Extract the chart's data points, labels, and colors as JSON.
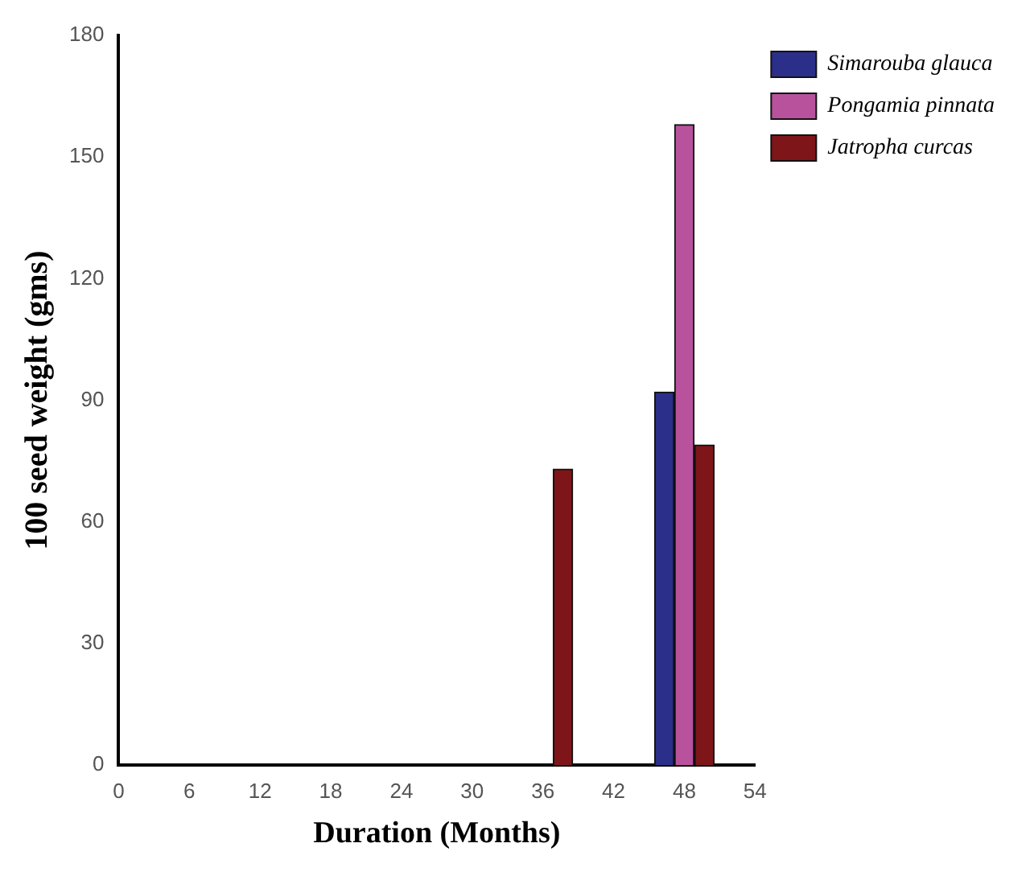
{
  "chart_data": {
    "type": "bar",
    "xlabel": "Duration (Months)",
    "ylabel": "100 seed weight (gms)",
    "xlim": [
      0,
      54
    ],
    "xticks": [
      0,
      6,
      12,
      18,
      24,
      30,
      36,
      42,
      48,
      54
    ],
    "ylim": [
      0,
      180
    ],
    "yticks": [
      0,
      30,
      60,
      90,
      120,
      150,
      180
    ],
    "series": [
      {
        "name": "Simarouba glauca",
        "color": "#2b2f8a",
        "x": [
          46.3
        ],
        "values": [
          92
        ]
      },
      {
        "name": "Pongamia pinnata",
        "color": "#b9529c",
        "x": [
          48
        ],
        "values": [
          158
        ]
      },
      {
        "name": "Jatropha curcas",
        "color": "#7e1518",
        "x": [
          37.7,
          49.7
        ],
        "values": [
          73,
          79
        ]
      }
    ],
    "grid": false,
    "legend": "top right"
  }
}
